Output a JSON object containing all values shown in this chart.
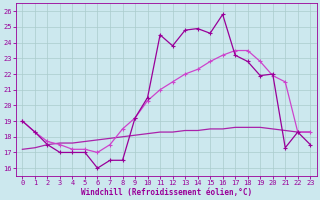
{
  "xlabel": "Windchill (Refroidissement éolien,°C)",
  "x": [
    0,
    1,
    2,
    3,
    4,
    5,
    6,
    7,
    8,
    9,
    10,
    11,
    12,
    13,
    14,
    15,
    16,
    17,
    18,
    19,
    20,
    21,
    22,
    23
  ],
  "line1": [
    19.0,
    18.3,
    17.5,
    17.0,
    17.0,
    17.0,
    16.0,
    16.5,
    16.5,
    19.2,
    20.5,
    24.5,
    23.8,
    24.8,
    24.9,
    24.6,
    25.8,
    23.2,
    22.8,
    21.9,
    22.0,
    17.3,
    18.3,
    17.5
  ],
  "line2": [
    19.0,
    18.3,
    17.7,
    17.5,
    17.2,
    17.2,
    17.0,
    17.5,
    18.5,
    19.2,
    20.3,
    21.0,
    21.5,
    22.0,
    22.3,
    22.8,
    23.2,
    23.5,
    23.5,
    22.8,
    21.9,
    21.5,
    18.3,
    18.3
  ],
  "line3": [
    17.2,
    17.3,
    17.5,
    17.6,
    17.6,
    17.7,
    17.8,
    17.9,
    18.0,
    18.1,
    18.2,
    18.3,
    18.3,
    18.4,
    18.4,
    18.5,
    18.5,
    18.6,
    18.6,
    18.6,
    18.5,
    18.4,
    18.3,
    18.3
  ],
  "line_color1": "#990099",
  "line_color2": "#cc44cc",
  "line_color3": "#aa22aa",
  "bg_color": "#cce8ee",
  "grid_color": "#aacccc",
  "ylim": [
    15.5,
    26.5
  ],
  "xlim": [
    -0.5,
    23.5
  ],
  "yticks": [
    16,
    17,
    18,
    19,
    20,
    21,
    22,
    23,
    24,
    25,
    26
  ],
  "xticks": [
    0,
    1,
    2,
    3,
    4,
    5,
    6,
    7,
    8,
    9,
    10,
    11,
    12,
    13,
    14,
    15,
    16,
    17,
    18,
    19,
    20,
    21,
    22,
    23
  ],
  "markersize": 2.5,
  "linewidth": 0.9
}
